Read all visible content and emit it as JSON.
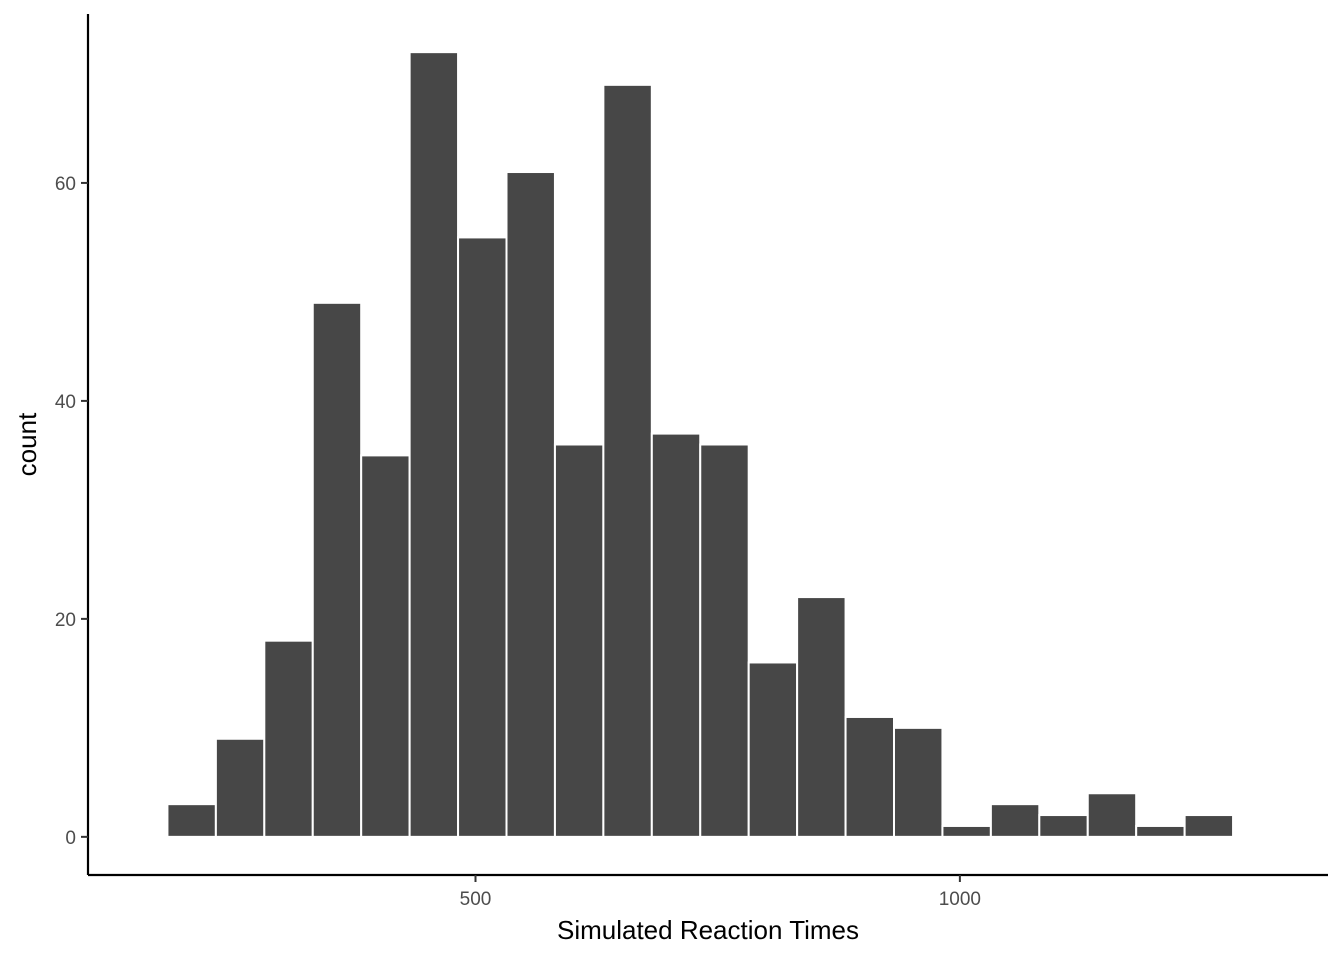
{
  "chart_data": {
    "type": "bar",
    "title": "",
    "xlabel": "Simulated Reaction Times",
    "ylabel": "count",
    "bar_color": "#474747",
    "bar_outline_color": "#ffffff",
    "grid": false,
    "legend": "none",
    "bin_width": 50,
    "bins": [
      {
        "x_start": 182,
        "x_end": 232,
        "count": 3
      },
      {
        "x_start": 232,
        "x_end": 282,
        "count": 9
      },
      {
        "x_start": 282,
        "x_end": 332,
        "count": 18
      },
      {
        "x_start": 332,
        "x_end": 382,
        "count": 49
      },
      {
        "x_start": 382,
        "x_end": 432,
        "count": 35
      },
      {
        "x_start": 432,
        "x_end": 482,
        "count": 72
      },
      {
        "x_start": 482,
        "x_end": 532,
        "count": 55
      },
      {
        "x_start": 532,
        "x_end": 582,
        "count": 61
      },
      {
        "x_start": 582,
        "x_end": 632,
        "count": 36
      },
      {
        "x_start": 632,
        "x_end": 682,
        "count": 69
      },
      {
        "x_start": 682,
        "x_end": 732,
        "count": 37
      },
      {
        "x_start": 732,
        "x_end": 782,
        "count": 36
      },
      {
        "x_start": 782,
        "x_end": 832,
        "count": 16
      },
      {
        "x_start": 832,
        "x_end": 882,
        "count": 22
      },
      {
        "x_start": 882,
        "x_end": 932,
        "count": 11
      },
      {
        "x_start": 932,
        "x_end": 982,
        "count": 10
      },
      {
        "x_start": 982,
        "x_end": 1032,
        "count": 1
      },
      {
        "x_start": 1032,
        "x_end": 1082,
        "count": 3
      },
      {
        "x_start": 1082,
        "x_end": 1132,
        "count": 2
      },
      {
        "x_start": 1132,
        "x_end": 1182,
        "count": 4
      },
      {
        "x_start": 1182,
        "x_end": 1232,
        "count": 1
      },
      {
        "x_start": 1232,
        "x_end": 1282,
        "count": 2
      }
    ],
    "xlim": [
      100,
      1380
    ],
    "ylim": [
      -3.5,
      75.5
    ],
    "x_ticks": [
      500,
      1000
    ],
    "x_tick_labels": [
      "500",
      "1000"
    ],
    "y_ticks": [
      0,
      20,
      40,
      60
    ],
    "y_tick_labels": [
      "0",
      "20",
      "40",
      "60"
    ]
  }
}
